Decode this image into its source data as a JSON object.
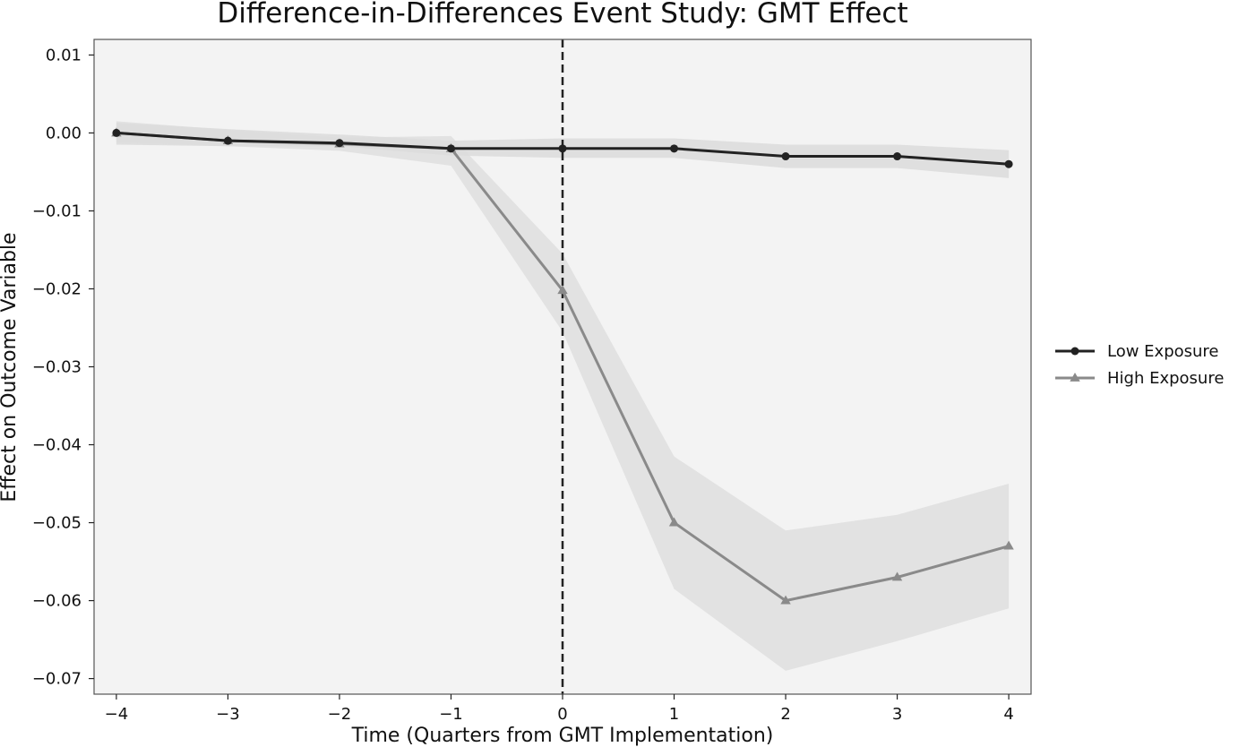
{
  "chart_data": {
    "type": "line",
    "title": "Difference-in-Differences Event Study: GMT Effect",
    "xlabel": "Time (Quarters from GMT Implementation)",
    "ylabel": "Effect on Outcome Variable",
    "x": [
      -4,
      -3,
      -2,
      -1,
      0,
      1,
      2,
      3,
      4
    ],
    "xlim": [
      -4.2,
      4.2
    ],
    "ylim": [
      -0.072,
      0.012
    ],
    "xticks": [
      -4,
      -3,
      -2,
      -1,
      0,
      1,
      2,
      3,
      4
    ],
    "xtick_labels": [
      "−4",
      "−3",
      "−2",
      "−1",
      "0",
      "1",
      "2",
      "3",
      "4"
    ],
    "yticks": [
      0.01,
      0.0,
      -0.01,
      -0.02,
      -0.03,
      -0.04,
      -0.05,
      -0.06,
      -0.07
    ],
    "ytick_labels": [
      "0.01",
      "0.00",
      "−0.01",
      "−0.02",
      "−0.03",
      "−0.04",
      "−0.05",
      "−0.06",
      "−0.07"
    ],
    "vertical_reference_line": {
      "x": 0,
      "style": "dashed"
    },
    "grid": false,
    "legend_position": "outside-right",
    "plot_background": "#f3f3f3",
    "series": [
      {
        "name": "Low Exposure",
        "marker": "circle",
        "color": "#222222",
        "values": [
          0.0,
          -0.001,
          -0.0013,
          -0.002,
          -0.002,
          -0.002,
          -0.003,
          -0.003,
          -0.004
        ],
        "ci_lower": [
          -0.0015,
          -0.0017,
          -0.0017,
          -0.0029,
          -0.0032,
          -0.0032,
          -0.0045,
          -0.0045,
          -0.0058
        ],
        "ci_upper": [
          0.0013,
          0.0005,
          -0.0002,
          -0.001,
          -0.0007,
          -0.0007,
          -0.0015,
          -0.0015,
          -0.0022
        ],
        "ci_color": "#d8d8d8"
      },
      {
        "name": "High Exposure",
        "marker": "triangle",
        "color": "#8a8a8a",
        "values": [
          0.0,
          -0.001,
          -0.0014,
          -0.002,
          -0.0202,
          -0.05,
          -0.06,
          -0.057,
          -0.053
        ],
        "ci_lower": [
          -0.0012,
          -0.0017,
          -0.0023,
          -0.0042,
          -0.0255,
          -0.0585,
          -0.069,
          -0.0652,
          -0.061
        ],
        "ci_upper": [
          0.0015,
          0.0004,
          -0.0006,
          -0.0004,
          -0.0155,
          -0.0415,
          -0.051,
          -0.049,
          -0.045
        ],
        "ci_color": "#dcdcdc"
      }
    ]
  }
}
